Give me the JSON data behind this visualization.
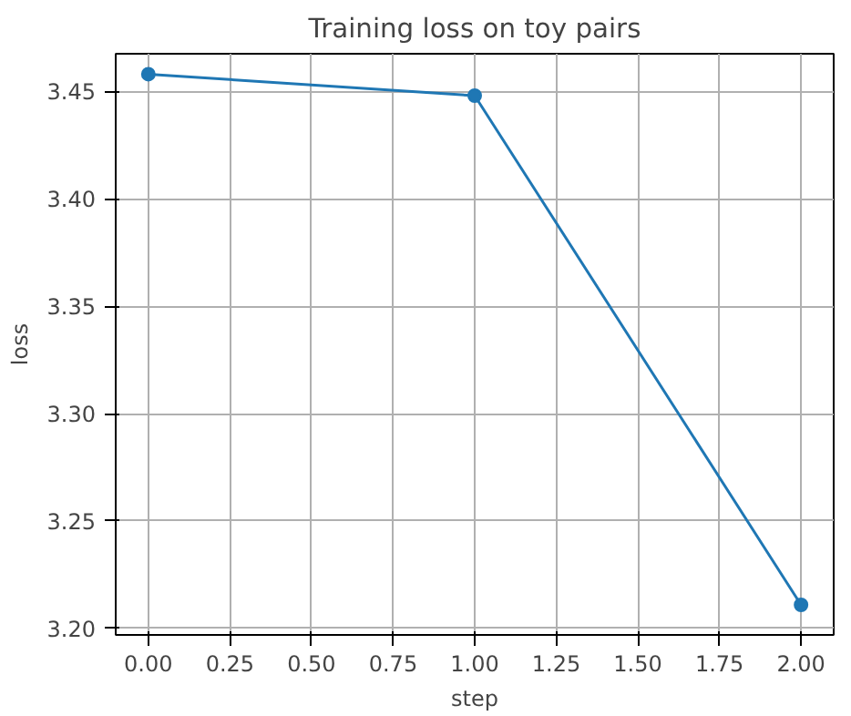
{
  "chart_data": {
    "type": "line",
    "title": "Training loss on toy pairs",
    "xlabel": "step",
    "ylabel": "loss",
    "x": [
      0,
      1,
      2
    ],
    "series": [
      {
        "color": "#1f77b4",
        "values": [
          3.458,
          3.448,
          3.211
        ]
      }
    ],
    "xlim": [
      -0.1,
      2.1
    ],
    "xticks": [
      {
        "value": 0,
        "label": "0.00"
      },
      {
        "value": 0.25,
        "label": "0.25"
      },
      {
        "value": 0.5,
        "label": "0.50"
      },
      {
        "value": 0.75,
        "label": "0.75"
      },
      {
        "value": 1,
        "label": "1.00"
      },
      {
        "value": 1.25,
        "label": "1.25"
      },
      {
        "value": 1.5,
        "label": "1.50"
      },
      {
        "value": 1.75,
        "label": "1.75"
      },
      {
        "value": 2,
        "label": "2.00"
      }
    ],
    "ylim": [
      3.197,
      3.4675
    ],
    "yticks": [
      {
        "value": 3.2,
        "label": "3.20"
      },
      {
        "value": 3.25,
        "label": "3.25"
      },
      {
        "value": 3.3,
        "label": "3.30"
      },
      {
        "value": 3.35,
        "label": "3.35"
      },
      {
        "value": 3.4,
        "label": "3.40"
      },
      {
        "value": 3.45,
        "label": "3.45"
      }
    ],
    "grid": true,
    "marker": "circle",
    "line_style": "solid"
  }
}
